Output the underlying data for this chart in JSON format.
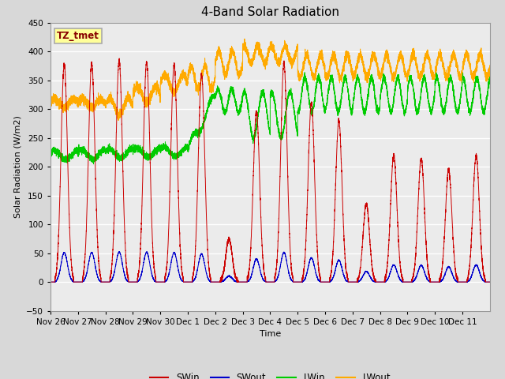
{
  "title": "4-Band Solar Radiation",
  "xlabel": "Time",
  "ylabel": "Solar Radiation (W/m2)",
  "ylim": [
    -50,
    450
  ],
  "yticks": [
    -50,
    0,
    50,
    100,
    150,
    200,
    250,
    300,
    350,
    400,
    450
  ],
  "legend_labels": [
    "SWin",
    "SWout",
    "LWin",
    "LWout"
  ],
  "legend_colors": [
    "#cc0000",
    "#0000cc",
    "#00cc00",
    "#ffaa00"
  ],
  "bg_color": "#d8d8d8",
  "plot_bg_color": "#ebebeb",
  "annotation_text": "TZ_tmet",
  "annotation_bg": "#ffff99",
  "annotation_border": "#aaaaaa",
  "annotation_text_color": "#880000",
  "title_fontsize": 11,
  "label_fontsize": 8,
  "tick_fontsize": 7.5,
  "tick_labels": [
    "Nov 26",
    "Nov 27",
    "Nov 28",
    "Nov 29",
    "Nov 30",
    "Dec 1",
    "Dec 2",
    "Dec 3",
    "Dec 4",
    "Dec 5",
    "Dec 6",
    "Dec 7",
    "Dec 8",
    "Dec 9",
    "Dec 10",
    "Dec 11"
  ],
  "swin_day_amp": [
    378,
    380,
    385,
    382,
    378,
    360,
    75,
    295,
    380,
    310,
    280,
    135,
    220,
    215,
    195,
    220
  ],
  "swout_scale": 0.135
}
